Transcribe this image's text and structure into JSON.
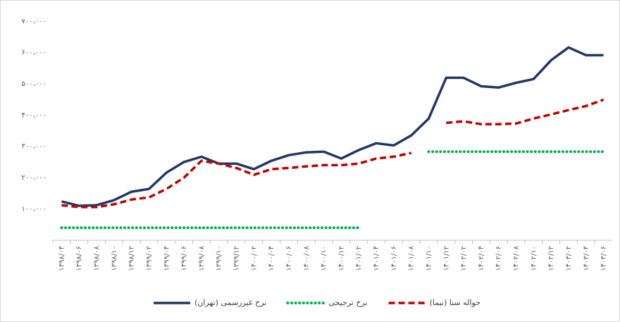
{
  "chart_data": {
    "type": "line",
    "categories": [
      "۱۳۹۸/۰۴",
      "۱۳۹۸/۰۶",
      "۱۳۹۸/۰۸",
      "۱۳۹۸/۱۰",
      "۱۳۹۸/۱۲",
      "۱۳۹۹/۰۲",
      "۱۳۹۹/۰۴",
      "۱۳۹۹/۰۶",
      "۱۳۹۹/۰۸",
      "۱۳۹۹/۱۰",
      "۱۳۹۹/۱۲",
      "۱۴۰۰/۰۲",
      "۱۴۰۰/۰۴",
      "۱۴۰۰/۰۶",
      "۱۴۰۰/۰۸",
      "۱۴۰۰/۱۰",
      "۱۴۰۰/۱۲",
      "۱۴۰۱/۰۲",
      "۱۴۰۱/۰۴",
      "۱۴۰۱/۰۶",
      "۱۴۰۱/۰۸",
      "۱۴۰۱/۱۰",
      "۱۴۰۱/۱۲",
      "۱۴۰۲/۰۲",
      "۱۴۰۲/۰۴",
      "۱۴۰۲/۰۶",
      "۱۴۰۲/۰۸",
      "۱۴۰۲/۱۰",
      "۱۴۰۲/۱۲",
      "۱۴۰۳/۰۲",
      "۱۴۰۳/۰۴",
      "۱۴۰۳/۰۶"
    ],
    "series": [
      {
        "name": "نرخ غیررسمی (تهران)",
        "color": "#203864",
        "style": "solid",
        "values": [
          124000,
          110000,
          112000,
          128000,
          155000,
          164000,
          216000,
          250000,
          267000,
          245000,
          245000,
          227000,
          254000,
          272000,
          281000,
          283000,
          261000,
          288000,
          310000,
          303000,
          335000,
          389000,
          519000,
          519000,
          492000,
          488000,
          503000,
          515000,
          575000,
          616000,
          591000,
          591000
        ]
      },
      {
        "name": "نرخ ترجیحی",
        "color": "#00b050",
        "style": "dotted",
        "values": [
          40000,
          40000,
          40000,
          40000,
          40000,
          40000,
          40000,
          40000,
          40000,
          40000,
          40000,
          40000,
          40000,
          40000,
          40000,
          40000,
          40000,
          40000,
          null,
          null,
          null,
          283000,
          283000,
          283000,
          283000,
          283000,
          283000,
          283000,
          283000,
          283000,
          283000,
          283000
        ]
      },
      {
        "name": "حواله سنا (نیما)",
        "color": "#c00000",
        "style": "dashed",
        "values": [
          112000,
          106000,
          106000,
          115000,
          130000,
          137000,
          164000,
          200000,
          254000,
          245000,
          231000,
          209000,
          227000,
          231000,
          236000,
          240000,
          240000,
          245000,
          261000,
          267000,
          279000,
          null,
          375000,
          380000,
          371000,
          371000,
          373000,
          389000,
          402000,
          416000,
          429000,
          449000
        ]
      }
    ],
    "ylim": [
      0,
      700000
    ],
    "yticks": [
      {
        "value": 100000,
        "label": "۱۰۰،۰۰۰"
      },
      {
        "value": 200000,
        "label": "۲۰۰،۰۰۰"
      },
      {
        "value": 300000,
        "label": "۳۰۰،۰۰۰"
      },
      {
        "value": 400000,
        "label": "۴۰۰،۰۰۰"
      },
      {
        "value": 500000,
        "label": "۵۰۰،۰۰۰"
      },
      {
        "value": 600000,
        "label": "۶۰۰،۰۰۰"
      },
      {
        "value": 700000,
        "label": "۷۰۰،۰۰۰"
      }
    ],
    "grid": false,
    "legend": "bottom"
  }
}
